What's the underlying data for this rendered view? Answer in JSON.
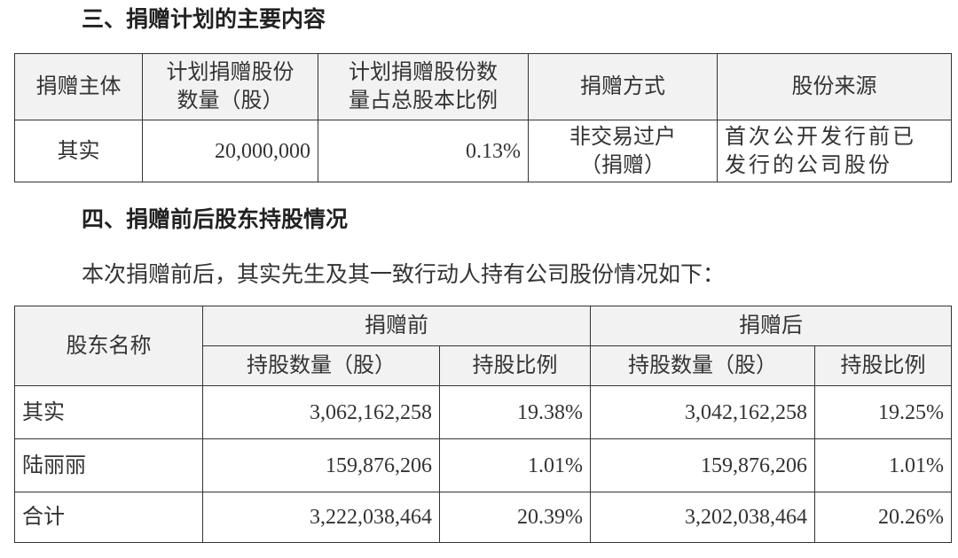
{
  "section3": {
    "title": "三、捐赠计划的主要内容",
    "table": {
      "headers": [
        [
          "捐赠主体"
        ],
        [
          "计划捐赠股份",
          "数量（股）"
        ],
        [
          "计划捐赠股份数",
          "量占总股本比例"
        ],
        [
          "捐赠方式"
        ],
        [
          "股份来源"
        ]
      ],
      "rows": [
        [
          [
            "其实"
          ],
          [
            "20,000,000"
          ],
          [
            "0.13%"
          ],
          [
            "非交易过户",
            "（捐赠）"
          ],
          [
            "首次公开发行前已",
            "发行的公司股份"
          ]
        ]
      ]
    }
  },
  "section4": {
    "title": "四、捐赠前后股东持股情况",
    "paragraph": "本次捐赠前后，其实先生及其一致行动人持有公司股份情况如下：",
    "table": {
      "name_header": "股东名称",
      "groups": [
        "捐赠前",
        "捐赠后"
      ],
      "subheaders": [
        "持股数量（股）",
        "持股比例",
        "持股数量（股）",
        "持股比例"
      ],
      "rows": [
        [
          "其实",
          "3,062,162,258",
          "19.38%",
          "3,042,162,258",
          "19.25%"
        ],
        [
          "陆丽丽",
          "159,876,206",
          "1.01%",
          "159,876,206",
          "1.01%"
        ],
        [
          "合计",
          "3,222,038,464",
          "20.39%",
          "3,202,038,464",
          "20.26%"
        ]
      ]
    }
  }
}
